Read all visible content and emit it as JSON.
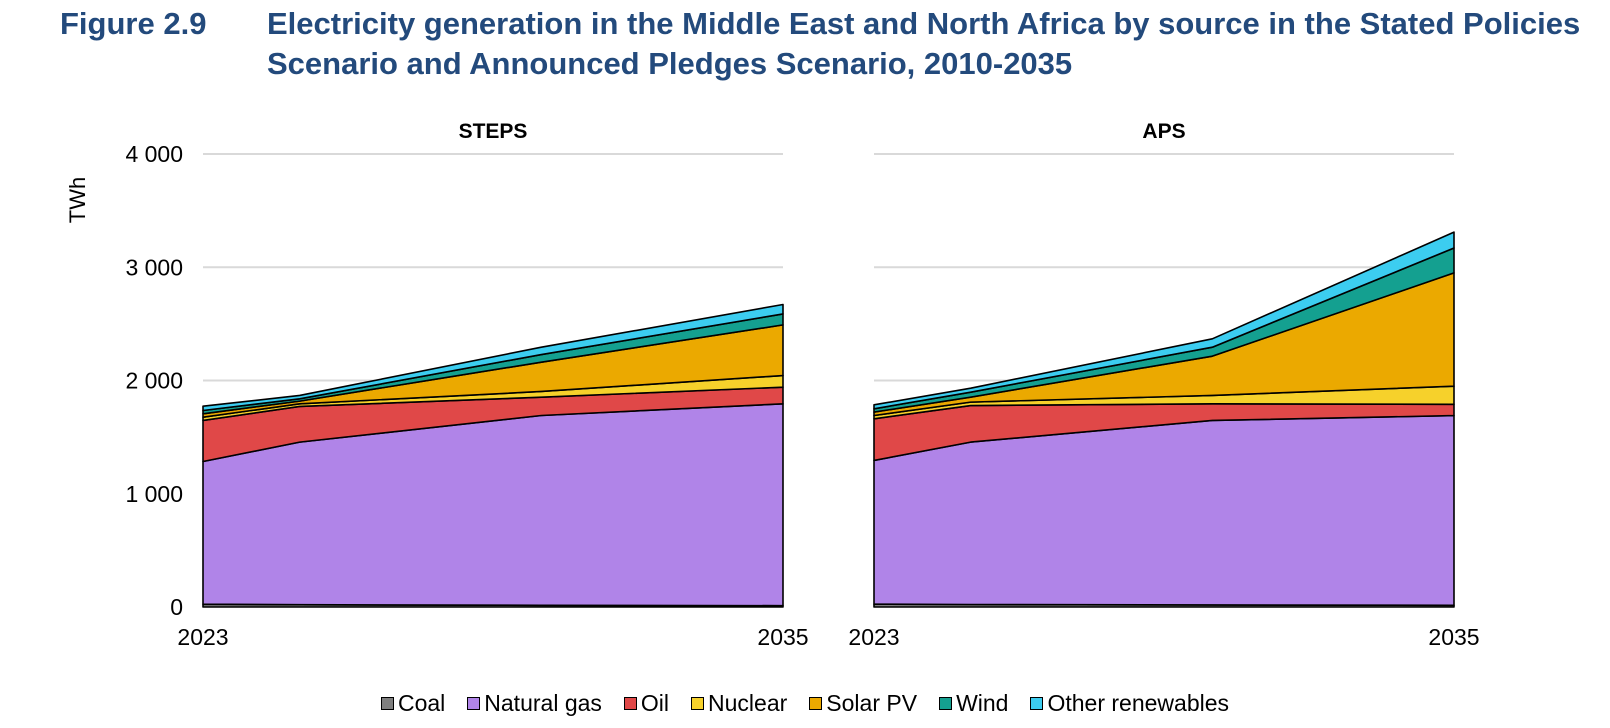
{
  "figure": {
    "number": "Figure 2.9",
    "title": "Electricity generation in the Middle East and North Africa by source in the Stated Policies Scenario and Announced Pledges Scenario, 2010-2035"
  },
  "chart_data": [
    {
      "type": "area",
      "stacked": true,
      "title": "STEPS",
      "ylabel": "TWh",
      "xlabel": "",
      "x": [
        2023,
        2025,
        2030,
        2035
      ],
      "x_tick_labels": [
        "2023",
        "2035"
      ],
      "ylim": [
        0,
        4000
      ],
      "y_ticks": [
        0,
        1000,
        2000,
        3000,
        4000
      ],
      "y_tick_labels": [
        "0",
        "1 000",
        "2 000",
        "3 000",
        "4 000"
      ],
      "grid": true,
      "series": [
        {
          "name": "Coal",
          "color": "#7f7f7f",
          "values": [
            25,
            20,
            15,
            12
          ]
        },
        {
          "name": "Natural gas",
          "color": "#b084e8",
          "values": [
            1260,
            1436,
            1676,
            1782
          ]
        },
        {
          "name": "Oil",
          "color": "#e04848",
          "values": [
            362,
            315,
            162,
            147
          ]
        },
        {
          "name": "Nuclear",
          "color": "#f6d12b",
          "values": [
            29,
            23,
            50,
            103
          ]
        },
        {
          "name": "Solar PV",
          "color": "#eba900",
          "values": [
            30,
            24,
            259,
            447
          ]
        },
        {
          "name": "Wind",
          "color": "#14a090",
          "values": [
            29,
            20,
            67,
            97
          ]
        },
        {
          "name": "Other renewables",
          "color": "#3ccdf0",
          "values": [
            38,
            30,
            65,
            83
          ]
        }
      ]
    },
    {
      "type": "area",
      "stacked": true,
      "title": "APS",
      "ylabel": "",
      "xlabel": "",
      "x": [
        2023,
        2025,
        2030,
        2035
      ],
      "x_tick_labels": [
        "2023",
        "2035"
      ],
      "ylim": [
        0,
        4000
      ],
      "y_ticks": [
        0,
        1000,
        2000,
        3000,
        4000
      ],
      "grid": true,
      "series": [
        {
          "name": "Coal",
          "color": "#7f7f7f",
          "values": [
            25,
            22,
            18,
            15
          ]
        },
        {
          "name": "Natural gas",
          "color": "#b084e8",
          "values": [
            1269,
            1434,
            1629,
            1675
          ]
        },
        {
          "name": "Oil",
          "color": "#e04848",
          "values": [
            368,
            323,
            147,
            100
          ]
        },
        {
          "name": "Nuclear",
          "color": "#f6d12b",
          "values": [
            29,
            30,
            74,
            160
          ]
        },
        {
          "name": "Solar PV",
          "color": "#eba900",
          "values": [
            30,
            44,
            347,
            1000
          ]
        },
        {
          "name": "Wind",
          "color": "#14a090",
          "values": [
            29,
            44,
            79,
            220
          ]
        },
        {
          "name": "Other renewables",
          "color": "#3ccdf0",
          "values": [
            35,
            35,
            74,
            140
          ]
        }
      ]
    }
  ],
  "legend": {
    "placement": "bottom",
    "items": [
      "Coal",
      "Natural gas",
      "Oil",
      "Nuclear",
      "Solar PV",
      "Wind",
      "Other renewables"
    ]
  }
}
